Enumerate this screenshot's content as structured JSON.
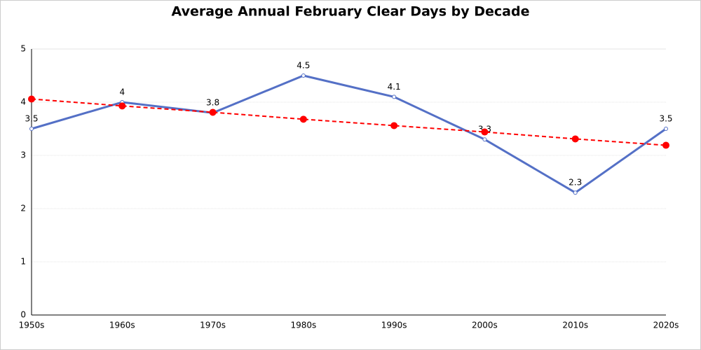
{
  "chart_data": {
    "type": "line",
    "title": "Average Annual February Clear Days by Decade",
    "categories": [
      "1950s",
      "1960s",
      "1970s",
      "1980s",
      "1990s",
      "2000s",
      "2010s",
      "2020s"
    ],
    "series": [
      {
        "color": "#5470c6",
        "values": [
          3.5,
          4,
          3.8,
          4.5,
          4.1,
          3.3,
          2.3,
          3.5
        ],
        "value_labels": [
          "3.5",
          "4",
          "3.8",
          "4.5",
          "4.1",
          "3.3",
          "2.3",
          "3.5"
        ]
      },
      {
        "color": "#ff0000",
        "values": [
          4.06,
          3.93,
          3.81,
          3.68,
          3.56,
          3.44,
          3.31,
          3.19
        ],
        "dashed": true
      }
    ],
    "ylim": [
      0,
      5
    ],
    "yticks": [
      0,
      1,
      2,
      3,
      4,
      5
    ],
    "grid": true
  }
}
